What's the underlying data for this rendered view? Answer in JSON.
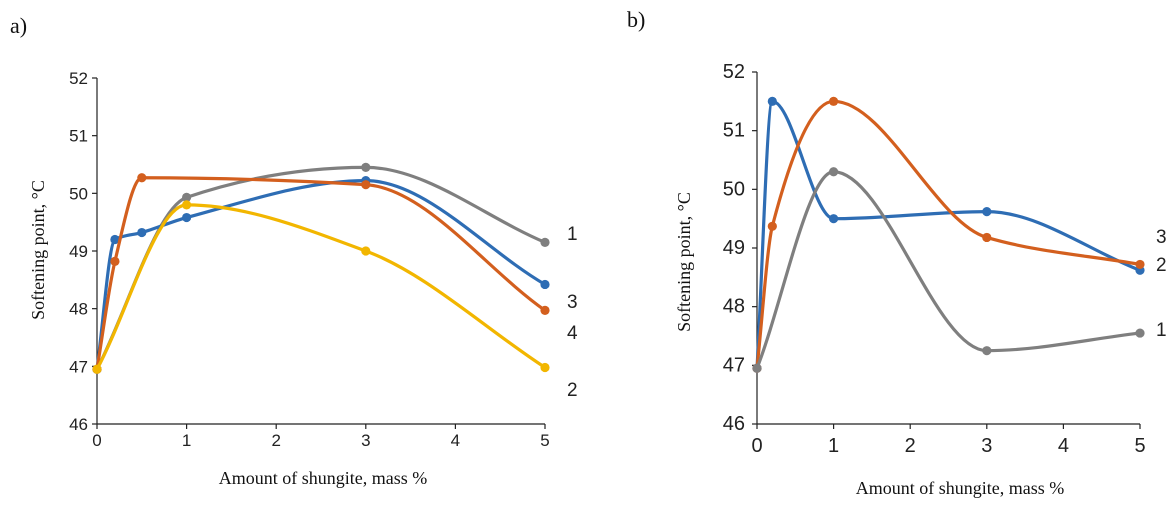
{
  "chart_data": [
    {
      "type": "line",
      "panel_label": "a)",
      "xlabel": "Amount of shungite, mass %",
      "ylabel": "Softening point, °C",
      "xlim": [
        0,
        5
      ],
      "ylim": [
        46,
        52
      ],
      "xticks": [
        "0",
        "1",
        "2",
        "3",
        "4",
        "5"
      ],
      "yticks": [
        "46",
        "47",
        "48",
        "49",
        "50",
        "51",
        "52"
      ],
      "grid": false,
      "series": [
        {
          "name": "1",
          "color": "#7f7f7f",
          "x": [
            0,
            1,
            3,
            5
          ],
          "y": [
            46.95,
            49.93,
            50.45,
            49.15
          ]
        },
        {
          "name": "3",
          "color": "#2e6db4",
          "x": [
            0,
            0.2,
            0.5,
            1,
            3,
            5
          ],
          "y": [
            46.95,
            49.2,
            49.32,
            49.58,
            50.22,
            48.42
          ]
        },
        {
          "name": "4",
          "color": "#d35f1e",
          "x": [
            0,
            0.2,
            0.5,
            3,
            5
          ],
          "y": [
            46.95,
            48.82,
            50.27,
            50.15,
            47.97
          ]
        },
        {
          "name": "2",
          "color": "#f2b600",
          "x": [
            0,
            1,
            3,
            5
          ],
          "y": [
            46.95,
            49.8,
            49.0,
            46.98
          ]
        }
      ]
    },
    {
      "type": "line",
      "panel_label": "b)",
      "xlabel": "Amount of shungite, mass %",
      "ylabel": "Softening point, °C",
      "xlim": [
        0,
        5
      ],
      "ylim": [
        46,
        52
      ],
      "xticks": [
        "0",
        "1",
        "2",
        "3",
        "4",
        "5"
      ],
      "yticks": [
        "46",
        "47",
        "48",
        "49",
        "50",
        "51",
        "52"
      ],
      "grid": false,
      "series": [
        {
          "name": "2",
          "color": "#2e6db4",
          "x": [
            0,
            0.2,
            1,
            3,
            5
          ],
          "y": [
            46.95,
            51.5,
            49.5,
            49.62,
            48.62
          ]
        },
        {
          "name": "3",
          "color": "#d35f1e",
          "x": [
            0,
            0.2,
            1,
            3,
            5
          ],
          "y": [
            46.95,
            49.37,
            51.5,
            49.18,
            48.72
          ]
        },
        {
          "name": "1",
          "color": "#7f7f7f",
          "x": [
            0,
            1,
            3,
            5
          ],
          "y": [
            46.95,
            50.3,
            47.25,
            47.55
          ]
        }
      ]
    }
  ]
}
